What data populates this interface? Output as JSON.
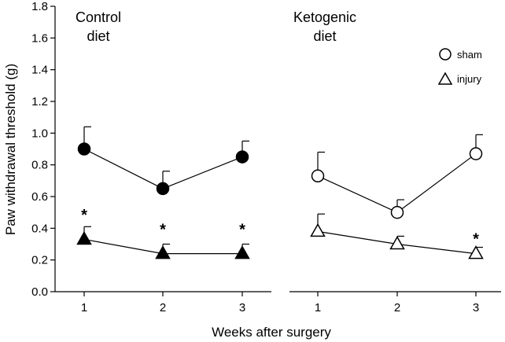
{
  "chart_data": {
    "type": "line",
    "ylabel": "Paw withdrawal threshold (g)",
    "xlabel": "Weeks after surgery",
    "ylim": [
      0,
      1.8
    ],
    "yticks": [
      "0.0",
      "0.2",
      "0.4",
      "0.6",
      "0.8",
      "1.0",
      "1.2",
      "1.4",
      "1.6",
      "1.8"
    ],
    "legend": {
      "position": "top-right",
      "entries": [
        {
          "label": "sham",
          "marker": "circle"
        },
        {
          "label": "injury",
          "marker": "triangle"
        }
      ]
    },
    "panels": [
      {
        "title_line1": "Control",
        "title_line2": "diet",
        "filled": true,
        "x": [
          "1",
          "2",
          "3"
        ],
        "series": [
          {
            "name": "sham",
            "marker": "circle",
            "values": [
              0.9,
              0.65,
              0.85
            ],
            "errors": [
              0.14,
              0.11,
              0.1
            ]
          },
          {
            "name": "injury",
            "marker": "triangle",
            "values": [
              0.33,
              0.24,
              0.24
            ],
            "errors": [
              0.08,
              0.06,
              0.06
            ]
          }
        ],
        "significance": [
          {
            "label": "*",
            "x": "1",
            "y": 0.51
          },
          {
            "label": "*",
            "x": "2",
            "y": 0.42
          },
          {
            "label": "*",
            "x": "3",
            "y": 0.42
          }
        ]
      },
      {
        "title_line1": "Ketogenic",
        "title_line2": "diet",
        "filled": false,
        "x": [
          "1",
          "2",
          "3"
        ],
        "series": [
          {
            "name": "sham",
            "marker": "circle",
            "values": [
              0.73,
              0.5,
              0.87
            ],
            "errors": [
              0.15,
              0.08,
              0.12
            ]
          },
          {
            "name": "injury",
            "marker": "triangle",
            "values": [
              0.38,
              0.3,
              0.24
            ],
            "errors": [
              0.11,
              0.05,
              0.04
            ]
          }
        ],
        "significance": [
          {
            "label": "*",
            "x": "3",
            "y": 0.36
          }
        ]
      }
    ]
  }
}
